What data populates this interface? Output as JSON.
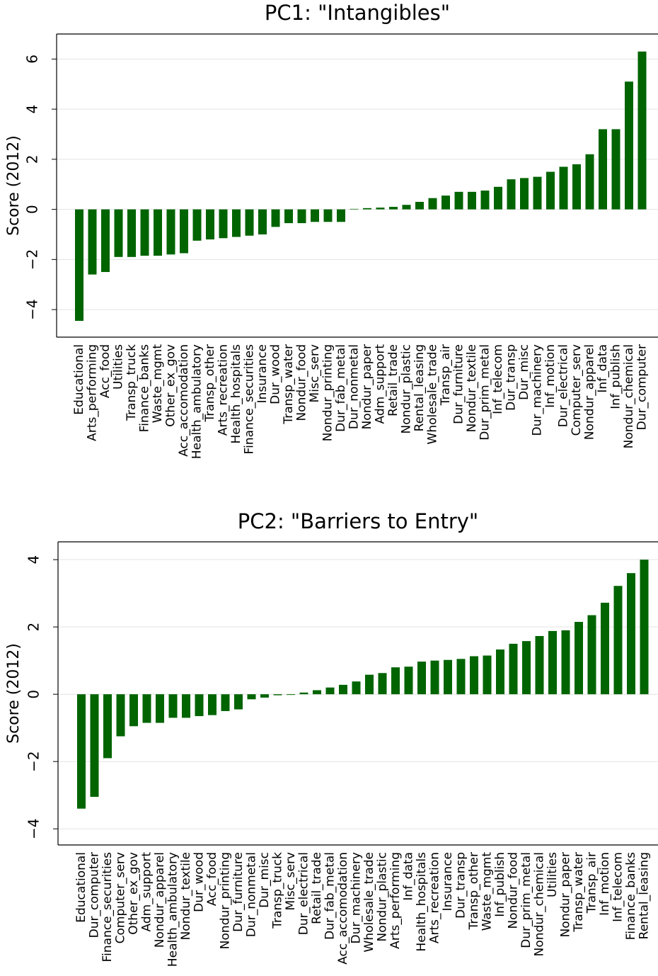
{
  "chart_data": [
    {
      "type": "bar",
      "title": "PC1: \"Intangibles\"",
      "y_label": "Score (2012)",
      "color": "#006400",
      "grid": true,
      "categories": [
        "Educational",
        "Arts_performing",
        "Acc_food",
        "Utilities",
        "Transp_truck",
        "Finance_banks",
        "Waste_mgmt",
        "Other_ex_gov",
        "Acc_accomodation",
        "Health_ambulatory",
        "Transp_other",
        "Arts_recreation",
        "Health_hospitals",
        "Finance_securities",
        "Insurance",
        "Dur_wood",
        "Transp_water",
        "Nondur_food",
        "Misc_serv",
        "Nondur_printing",
        "Dur_fab_metal",
        "Dur_nonmetal",
        "Nondur_paper",
        "Adm_support",
        "Retail_trade",
        "Nondur_plastic",
        "Rental_leasing",
        "Wholesale_trade",
        "Transp_air",
        "Dur_furniture",
        "Nondur_textile",
        "Dur_prim_metal",
        "Inf_telecom",
        "Dur_transp",
        "Dur_misc",
        "Dur_machinery",
        "Inf_motion",
        "Dur_electrical",
        "Computer_serv",
        "Nondur_apparel",
        "Inf_data",
        "Inf_publish",
        "Nondur_chemical",
        "Dur_computer"
      ],
      "values": [
        -4.45,
        -2.6,
        -2.5,
        -1.9,
        -1.9,
        -1.85,
        -1.85,
        -1.8,
        -1.75,
        -1.25,
        -1.2,
        -1.15,
        -1.1,
        -1.05,
        -1.0,
        -0.7,
        -0.55,
        -0.55,
        -0.5,
        -0.5,
        -0.5,
        0.02,
        0.05,
        0.07,
        0.1,
        0.18,
        0.3,
        0.45,
        0.55,
        0.7,
        0.7,
        0.75,
        0.9,
        1.2,
        1.25,
        1.3,
        1.5,
        1.7,
        1.8,
        2.2,
        3.2,
        3.2,
        5.1,
        6.3
      ],
      "ylim": [
        -5.1,
        7.0
      ],
      "yticks": [
        {
          "value": -4,
          "label": "−4"
        },
        {
          "value": -2,
          "label": "−2"
        },
        0,
        2,
        4,
        6
      ]
    },
    {
      "type": "bar",
      "title": "PC2: \"Barriers to Entry\"",
      "y_label": "Score (2012)",
      "color": "#006400",
      "grid": true,
      "categories": [
        "Educational",
        "Dur_computer",
        "Finance_securities",
        "Computer_serv",
        "Other_ex_gov",
        "Adm_support",
        "Nondur_apparel",
        "Health_ambulatory",
        "Nondur_textile",
        "Dur_wood",
        "Acc_food",
        "Nondur_printing",
        "Dur_furniture",
        "Dur_nonmetal",
        "Dur_misc",
        "Transp_truck",
        "Misc_serv",
        "Dur_electrical",
        "Retail_trade",
        "Dur_fab_metal",
        "Acc_accomodation",
        "Dur_machinery",
        "Wholesale_trade",
        "Nondur_plastic",
        "Arts_performing",
        "Inf_data",
        "Health_hospitals",
        "Arts_recreation",
        "Insurance",
        "Dur_transp",
        "Transp_other",
        "Waste_mgmt",
        "Inf_publish",
        "Nondur_food",
        "Dur_prim_metal",
        "Nondur_chemical",
        "Utilities",
        "Nondur_paper",
        "Transp_water",
        "Transp_air",
        "Inf_motion",
        "Inf_telecom",
        "Finance_banks",
        "Rental_leasing"
      ],
      "values": [
        -3.4,
        -3.05,
        -1.9,
        -1.25,
        -0.95,
        -0.85,
        -0.85,
        -0.7,
        -0.7,
        -0.65,
        -0.62,
        -0.5,
        -0.45,
        -0.15,
        -0.1,
        -0.03,
        -0.02,
        0.05,
        0.12,
        0.2,
        0.28,
        0.38,
        0.58,
        0.63,
        0.8,
        0.82,
        0.97,
        1.0,
        1.02,
        1.05,
        1.13,
        1.15,
        1.33,
        1.5,
        1.58,
        1.73,
        1.88,
        1.9,
        2.15,
        2.35,
        2.72,
        3.22,
        3.6,
        4.0
      ],
      "ylim": [
        -4.48,
        4.53
      ],
      "yticks": [
        {
          "value": -4,
          "label": "−4"
        },
        {
          "value": -2,
          "label": "−2"
        },
        0,
        2,
        4
      ]
    }
  ]
}
